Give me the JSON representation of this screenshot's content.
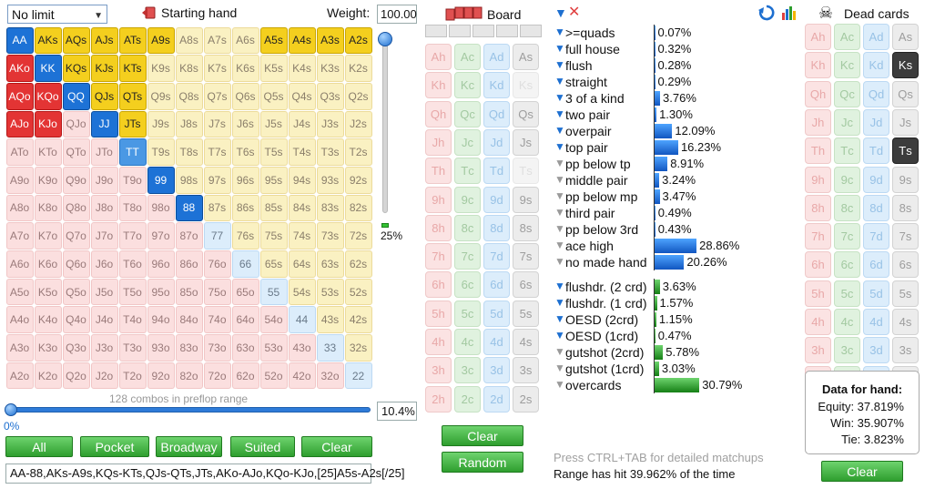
{
  "top": {
    "limit_select": "No limit",
    "starting_hand_label": "Starting hand",
    "weight_label": "Weight:",
    "weight_value": "100.00"
  },
  "grid": {
    "cells": [
      [
        "AA",
        "AKs",
        "AQs",
        "AJs",
        "ATs",
        "A9s",
        "A8s",
        "A7s",
        "A6s",
        "A5s",
        "A4s",
        "A3s",
        "A2s"
      ],
      [
        "AKo",
        "KK",
        "KQs",
        "KJs",
        "KTs",
        "K9s",
        "K8s",
        "K7s",
        "K6s",
        "K5s",
        "K4s",
        "K3s",
        "K2s"
      ],
      [
        "AQo",
        "KQo",
        "QQ",
        "QJs",
        "QTs",
        "Q9s",
        "Q8s",
        "Q7s",
        "Q6s",
        "Q5s",
        "Q4s",
        "Q3s",
        "Q2s"
      ],
      [
        "AJo",
        "KJo",
        "QJo",
        "JJ",
        "JTs",
        "J9s",
        "J8s",
        "J7s",
        "J6s",
        "J5s",
        "J4s",
        "J3s",
        "J2s"
      ],
      [
        "ATo",
        "KTo",
        "QTo",
        "JTo",
        "TT",
        "T9s",
        "T8s",
        "T7s",
        "T6s",
        "T5s",
        "T4s",
        "T3s",
        "T2s"
      ],
      [
        "A9o",
        "K9o",
        "Q9o",
        "J9o",
        "T9o",
        "99",
        "98s",
        "97s",
        "96s",
        "95s",
        "94s",
        "93s",
        "92s"
      ],
      [
        "A8o",
        "K8o",
        "Q8o",
        "J8o",
        "T8o",
        "98o",
        "88",
        "87s",
        "86s",
        "85s",
        "84s",
        "83s",
        "82s"
      ],
      [
        "A7o",
        "K7o",
        "Q7o",
        "J7o",
        "T7o",
        "97o",
        "87o",
        "77",
        "76s",
        "75s",
        "74s",
        "73s",
        "72s"
      ],
      [
        "A6o",
        "K6o",
        "Q6o",
        "J6o",
        "T6o",
        "96o",
        "86o",
        "76o",
        "66",
        "65s",
        "64s",
        "63s",
        "62s"
      ],
      [
        "A5o",
        "K5o",
        "Q5o",
        "J5o",
        "T5o",
        "95o",
        "85o",
        "75o",
        "65o",
        "55",
        "54s",
        "53s",
        "52s"
      ],
      [
        "A4o",
        "K4o",
        "Q4o",
        "J4o",
        "T4o",
        "94o",
        "84o",
        "74o",
        "64o",
        "54o",
        "44",
        "43s",
        "42s"
      ],
      [
        "A3o",
        "K3o",
        "Q3o",
        "J3o",
        "T3o",
        "93o",
        "83o",
        "73o",
        "63o",
        "53o",
        "43o",
        "33",
        "32s"
      ],
      [
        "A2o",
        "K2o",
        "Q2o",
        "J2o",
        "T2o",
        "92o",
        "82o",
        "72o",
        "62o",
        "52o",
        "42o",
        "32o",
        "22"
      ]
    ],
    "selected": [
      "AA",
      "AKs",
      "AQs",
      "AJs",
      "ATs",
      "A9s",
      "KK",
      "KQs",
      "KJs",
      "KTs",
      "QQ",
      "QJs",
      "QTs",
      "JJ",
      "JTs",
      "AKo",
      "AQo",
      "AJo",
      "KQo",
      "KJo",
      "99",
      "88",
      "A5s",
      "A4s",
      "A3s",
      "A2s"
    ],
    "partial": [
      "TT"
    ]
  },
  "weight_slider": {
    "percent_label": "25%",
    "level": 1.0
  },
  "range": {
    "combos_label": "128 combos in preflop range",
    "slider_pct_label": "0%",
    "range_pct": "10.4%",
    "range_text": "AA-88,AKs-A9s,KQs-KTs,QJs-QTs,JTs,AKo-AJo,KQo-KJo,[25]A5s-A2s[/25]"
  },
  "range_buttons": [
    "All",
    "Pocket",
    "Broadway",
    "Suited",
    "Clear"
  ],
  "board": {
    "label": "Board",
    "ranks": [
      "A",
      "K",
      "Q",
      "J",
      "T",
      "9",
      "8",
      "7",
      "6",
      "5",
      "4",
      "3",
      "2"
    ],
    "suits": [
      "h",
      "c",
      "d",
      "s"
    ],
    "faded": [
      "Ks",
      "Ts"
    ],
    "clear_label": "Clear",
    "random_label": "Random"
  },
  "stats": {
    "made_hands": [
      {
        "label": ">=quads",
        "value": "0.07%",
        "pct": 0.07,
        "filter": true
      },
      {
        "label": "full house",
        "value": "0.32%",
        "pct": 0.32,
        "filter": true
      },
      {
        "label": "flush",
        "value": "0.28%",
        "pct": 0.28,
        "filter": true
      },
      {
        "label": "straight",
        "value": "0.29%",
        "pct": 0.29,
        "filter": true
      },
      {
        "label": "3 of a kind",
        "value": "3.76%",
        "pct": 3.76,
        "filter": true
      },
      {
        "label": "two pair",
        "value": "1.30%",
        "pct": 1.3,
        "filter": true
      },
      {
        "label": "overpair",
        "value": "12.09%",
        "pct": 12.09,
        "filter": true
      },
      {
        "label": "top pair",
        "value": "16.23%",
        "pct": 16.23,
        "filter": true
      },
      {
        "label": "pp below tp",
        "value": "8.91%",
        "pct": 8.91,
        "filter": false
      },
      {
        "label": "middle pair",
        "value": "3.24%",
        "pct": 3.24,
        "filter": false
      },
      {
        "label": "pp below mp",
        "value": "3.47%",
        "pct": 3.47,
        "filter": false
      },
      {
        "label": "third pair",
        "value": "0.49%",
        "pct": 0.49,
        "filter": false
      },
      {
        "label": "pp below 3rd",
        "value": "0.43%",
        "pct": 0.43,
        "filter": false
      },
      {
        "label": "ace high",
        "value": "28.86%",
        "pct": 28.86,
        "filter": false
      },
      {
        "label": "no made hand",
        "value": "20.26%",
        "pct": 20.26,
        "filter": false
      }
    ],
    "draws": [
      {
        "label": "flushdr. (2 crd)",
        "value": "3.63%",
        "pct": 3.63,
        "filter": true
      },
      {
        "label": "flushdr. (1 crd)",
        "value": "1.57%",
        "pct": 1.57,
        "filter": true
      },
      {
        "label": "OESD (2crd)",
        "value": "1.15%",
        "pct": 1.15,
        "filter": true
      },
      {
        "label": "OESD (1crd)",
        "value": "0.47%",
        "pct": 0.47,
        "filter": true
      },
      {
        "label": "gutshot (2crd)",
        "value": "5.78%",
        "pct": 5.78,
        "filter": false
      },
      {
        "label": "gutshot (1crd)",
        "value": "3.03%",
        "pct": 3.03,
        "filter": false
      },
      {
        "label": "overcards",
        "value": "30.79%",
        "pct": 30.79,
        "filter": false
      }
    ],
    "press_hint": "Press CTRL+TAB for detailed matchups",
    "hit_text": "Range has hit 39.962% of the time"
  },
  "dead": {
    "label": "Dead cards",
    "selected": [
      "Ks",
      "Ts"
    ],
    "clear_label": "Clear"
  },
  "equity": {
    "title": "Data for hand:",
    "equity": "Equity: 37.819%",
    "win": "Win: 35.907%",
    "tie": "Tie: 3.823%"
  },
  "colors": {
    "suited": "#f4cf1e",
    "offsuit": "#e33434",
    "pair": "#1d72d6",
    "made_bar": "#1156c0",
    "draw_bar": "#157f15",
    "button_green": "#2e9e2e"
  }
}
